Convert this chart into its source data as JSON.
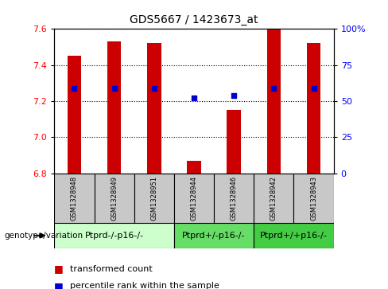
{
  "title": "GDS5667 / 1423673_at",
  "samples": [
    "GSM1328948",
    "GSM1328949",
    "GSM1328951",
    "GSM1328944",
    "GSM1328946",
    "GSM1328942",
    "GSM1328943"
  ],
  "bar_tops": [
    7.45,
    7.53,
    7.52,
    6.87,
    7.15,
    7.6,
    7.52
  ],
  "bar_bottom": 6.8,
  "blue_dots": [
    7.27,
    7.27,
    7.27,
    7.22,
    7.23,
    7.27,
    7.27
  ],
  "ylim": [
    6.8,
    7.6
  ],
  "yticks_left": [
    6.8,
    7.0,
    7.2,
    7.4,
    7.6
  ],
  "yticks_right_vals": [
    0,
    25,
    50,
    75,
    100
  ],
  "yticks_right_labels": [
    "0",
    "25",
    "50",
    "75",
    "100%"
  ],
  "bar_color": "#cc0000",
  "dot_color": "#0000cc",
  "group_defs": [
    {
      "start": 0,
      "end": 2,
      "label": "Ptprd-/-p16-/-",
      "color": "#ccffcc"
    },
    {
      "start": 3,
      "end": 4,
      "label": "Ptprd+/-p16-/-",
      "color": "#66dd66"
    },
    {
      "start": 5,
      "end": 6,
      "label": "Ptprd+/+p16-/-",
      "color": "#44cc44"
    }
  ],
  "legend_red": "transformed count",
  "legend_blue": "percentile rank within the sample",
  "genotype_label": "genotype/variation",
  "sample_box_color": "#c8c8c8",
  "title_fontsize": 10,
  "axis_label_fontsize": 8,
  "sample_fontsize": 6,
  "group_fontsize": 8,
  "legend_fontsize": 8
}
